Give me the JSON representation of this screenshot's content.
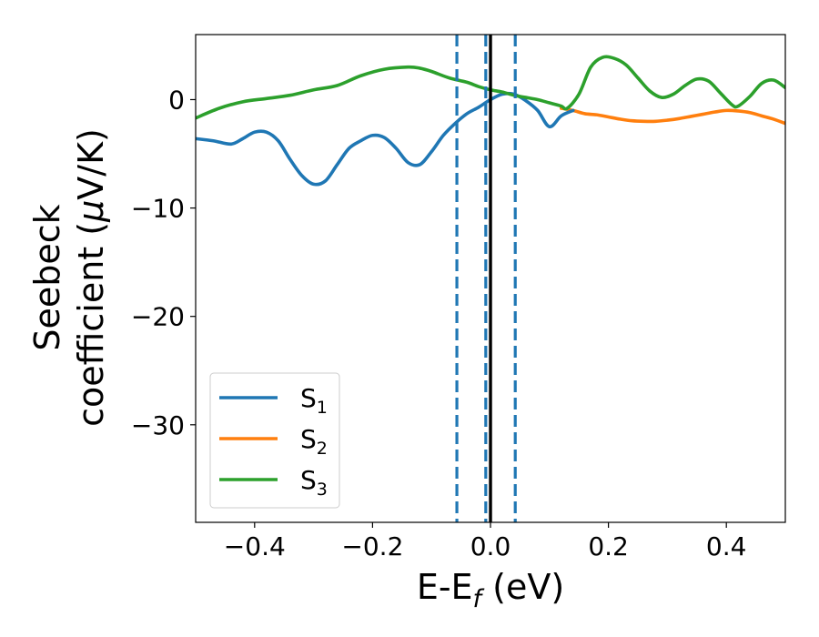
{
  "chart_data": {
    "type": "line",
    "xlabel": {
      "base": "E-E",
      "sub": "f",
      "tail": " (eV)"
    },
    "ylabel": {
      "line1": "Seebeck",
      "line2_pre": "coefficient  (",
      "line2_mu": "μ",
      "line2_post": "V/K)"
    },
    "xlim": [
      -0.5,
      0.5
    ],
    "ylim": [
      -39,
      6
    ],
    "xticks": [
      {
        "value": -0.4,
        "label": "−0.4"
      },
      {
        "value": -0.2,
        "label": "−0.2"
      },
      {
        "value": 0.0,
        "label": "0.0"
      },
      {
        "value": 0.2,
        "label": "0.2"
      },
      {
        "value": 0.4,
        "label": "0.4"
      }
    ],
    "yticks": [
      {
        "value": 0,
        "label": "0"
      },
      {
        "value": -10,
        "label": "−10"
      },
      {
        "value": -20,
        "label": "−20"
      },
      {
        "value": -30,
        "label": "−30"
      }
    ],
    "vlines": [
      {
        "x": -0.057,
        "style": "dashed",
        "color": "#1f77b4"
      },
      {
        "x": -0.008,
        "style": "dashed",
        "color": "#1f77b4"
      },
      {
        "x": 0.042,
        "style": "dashed",
        "color": "#1f77b4"
      },
      {
        "x": 0.0,
        "style": "solid",
        "color": "#000000"
      }
    ],
    "legend_position": "lower-left",
    "series": [
      {
        "name": "S",
        "sub": "1",
        "color": "#1f77b4",
        "x": [
          -0.5,
          -0.47,
          -0.44,
          -0.42,
          -0.4,
          -0.38,
          -0.36,
          -0.34,
          -0.32,
          -0.3,
          -0.28,
          -0.26,
          -0.24,
          -0.22,
          -0.2,
          -0.18,
          -0.16,
          -0.14,
          -0.12,
          -0.1,
          -0.08,
          -0.06,
          -0.04,
          -0.02,
          0.0,
          0.02,
          0.04,
          0.06,
          0.08,
          0.1,
          0.12,
          0.14
        ],
        "y": [
          -3.6,
          -3.8,
          -4.1,
          -3.6,
          -3.0,
          -3.0,
          -3.8,
          -5.5,
          -7.0,
          -7.8,
          -7.5,
          -6.0,
          -4.5,
          -3.8,
          -3.3,
          -3.5,
          -4.5,
          -5.8,
          -6.0,
          -4.8,
          -3.3,
          -2.2,
          -1.3,
          -0.7,
          0.0,
          0.5,
          0.5,
          -0.1,
          -1.0,
          -2.5,
          -1.5,
          -1.0
        ]
      },
      {
        "name": "S",
        "sub": "2",
        "color": "#ff7f0e",
        "x": [
          0.12,
          0.14,
          0.16,
          0.18,
          0.2,
          0.22,
          0.24,
          0.26,
          0.28,
          0.3,
          0.32,
          0.34,
          0.36,
          0.38,
          0.4,
          0.42,
          0.44,
          0.46,
          0.48,
          0.5
        ],
        "y": [
          -0.8,
          -1.0,
          -1.3,
          -1.4,
          -1.6,
          -1.8,
          -1.95,
          -2.0,
          -2.0,
          -1.9,
          -1.75,
          -1.55,
          -1.35,
          -1.15,
          -1.0,
          -1.05,
          -1.2,
          -1.5,
          -1.8,
          -2.2
        ]
      },
      {
        "name": "S",
        "sub": "3",
        "color": "#2ca02c",
        "x": [
          -0.5,
          -0.46,
          -0.42,
          -0.38,
          -0.34,
          -0.3,
          -0.26,
          -0.22,
          -0.18,
          -0.14,
          -0.12,
          -0.1,
          -0.07,
          -0.04,
          -0.02,
          0.0,
          0.02,
          0.04,
          0.06,
          0.08,
          0.1,
          0.12,
          0.13,
          0.15,
          0.17,
          0.19,
          0.21,
          0.23,
          0.25,
          0.27,
          0.29,
          0.31,
          0.33,
          0.35,
          0.37,
          0.39,
          0.41,
          0.42,
          0.44,
          0.46,
          0.48,
          0.5
        ],
        "y": [
          -1.7,
          -0.8,
          -0.2,
          0.1,
          0.4,
          0.9,
          1.3,
          2.2,
          2.8,
          3.0,
          2.9,
          2.6,
          2.0,
          1.6,
          1.2,
          0.9,
          0.7,
          0.4,
          0.2,
          0.0,
          -0.3,
          -0.6,
          -0.8,
          0.5,
          3.0,
          3.9,
          3.8,
          3.2,
          2.0,
          0.8,
          0.2,
          0.5,
          1.3,
          1.9,
          1.7,
          0.6,
          -0.5,
          -0.6,
          0.3,
          1.5,
          1.8,
          1.1
        ]
      }
    ]
  }
}
